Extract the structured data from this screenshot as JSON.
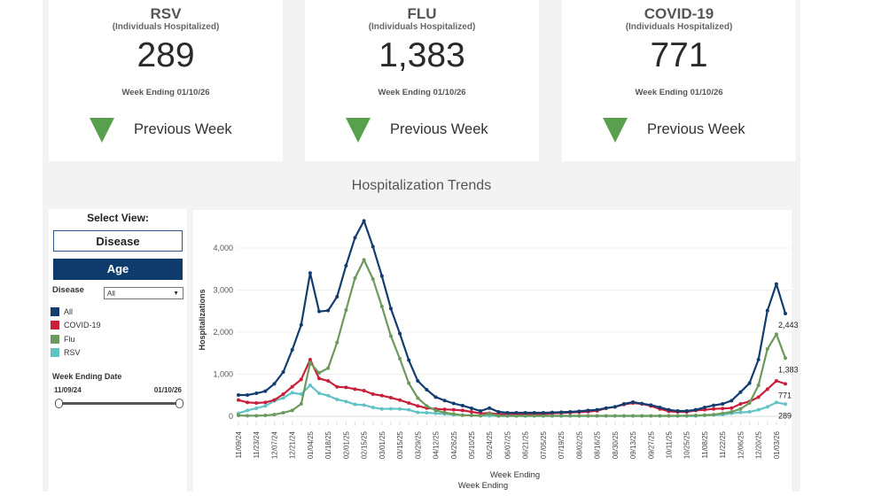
{
  "cards": [
    {
      "title": "RSV",
      "subtitle": "(Individuals Hospitalized)",
      "value": "289",
      "week": "Week Ending 01/10/26",
      "trend": "Previous Week",
      "trend_direction": "down"
    },
    {
      "title": "FLU",
      "subtitle": "(Individuals Hospitalized)",
      "value": "1,383",
      "week": "Week Ending 01/10/26",
      "trend": "Previous Week",
      "trend_direction": "down"
    },
    {
      "title": "COVID-19",
      "subtitle": "(Individuals Hospitalized)",
      "value": "771",
      "week": "Week Ending 01/10/26",
      "trend": "Previous Week",
      "trend_direction": "down"
    }
  ],
  "section_title": "Hospitalization Trends",
  "controls": {
    "select_view": "Select View:",
    "btn_disease": "Disease",
    "btn_age": "Age",
    "disease_label": "Disease",
    "disease_value": "All",
    "legend": [
      {
        "name": "All",
        "color": "#123d70"
      },
      {
        "name": "COVID-19",
        "color": "#c8203a"
      },
      {
        "name": "Flu",
        "color": "#6c9a5c"
      },
      {
        "name": "RSV",
        "color": "#62c3c7"
      }
    ],
    "date_label": "Week Ending Date",
    "date_start": "11/09/24",
    "date_end": "01/10/26"
  },
  "chart_data": {
    "type": "line",
    "xlabel": "Week Ending",
    "xlabel_repeat": "Week Ending",
    "ylabel": "Hospitalizations",
    "ylim": [
      0,
      4800
    ],
    "yticks": [
      0,
      1000,
      2000,
      3000,
      4000
    ],
    "ytick_labels": [
      "0",
      "1,000",
      "2,000",
      "3,000",
      "4,000"
    ],
    "grid": true,
    "x": [
      "11/09/24",
      "11/16/24",
      "11/23/24",
      "11/30/24",
      "12/07/24",
      "12/14/24",
      "12/21/24",
      "12/28/24",
      "01/04/25",
      "01/11/25",
      "01/18/25",
      "01/25/25",
      "02/01/25",
      "02/08/25",
      "02/15/25",
      "02/22/25",
      "03/01/25",
      "03/08/25",
      "03/15/25",
      "03/22/25",
      "03/29/25",
      "04/05/25",
      "04/12/25",
      "04/19/25",
      "04/26/25",
      "05/03/25",
      "05/10/25",
      "05/17/25",
      "05/24/25",
      "05/31/25",
      "06/07/25",
      "06/14/25",
      "06/21/25",
      "06/28/25",
      "07/05/25",
      "07/12/25",
      "07/19/25",
      "07/26/25",
      "08/02/25",
      "08/09/25",
      "08/16/25",
      "08/23/25",
      "08/30/25",
      "09/06/25",
      "09/13/25",
      "09/20/25",
      "09/27/25",
      "10/04/25",
      "10/11/25",
      "10/18/25",
      "10/25/25",
      "11/01/25",
      "11/08/25",
      "11/15/25",
      "11/22/25",
      "11/29/25",
      "12/06/25",
      "12/13/25",
      "12/20/25",
      "12/27/25",
      "01/03/26",
      "01/10/26"
    ],
    "series": [
      {
        "name": "All",
        "color": "#123d70",
        "end_label": "2,443",
        "values": [
          505,
          505,
          547,
          597,
          772,
          1053,
          1579,
          2175,
          3404,
          2491,
          2512,
          2842,
          3579,
          4246,
          4646,
          4035,
          3333,
          2561,
          1965,
          1333,
          842,
          632,
          456,
          375,
          305,
          255,
          190,
          126,
          196,
          105,
          84,
          84,
          84,
          84,
          84,
          91,
          98,
          105,
          119,
          140,
          154,
          196,
          225,
          295,
          337,
          302,
          267,
          211,
          154,
          126,
          126,
          154,
          211,
          260,
          295,
          372,
          575,
          786,
          1347,
          2512,
          3144,
          2443
        ]
      },
      {
        "name": "Flu",
        "color": "#6c9a5c",
        "end_label": "1,383",
        "values": [
          20,
          14,
          14,
          20,
          40,
          84,
          140,
          295,
          1270,
          1032,
          1144,
          1754,
          2526,
          3284,
          3719,
          3263,
          2611,
          1909,
          1368,
          786,
          435,
          246,
          140,
          88,
          55,
          25,
          21,
          14,
          60,
          10,
          10,
          10,
          10,
          10,
          10,
          10,
          10,
          10,
          10,
          10,
          10,
          10,
          10,
          10,
          10,
          10,
          10,
          10,
          10,
          10,
          14,
          20,
          28,
          40,
          70,
          105,
          175,
          316,
          737,
          1600,
          1951,
          1383
        ]
      },
      {
        "name": "COVID-19",
        "color": "#c8203a",
        "end_label": "771",
        "values": [
          386,
          330,
          316,
          330,
          386,
          526,
          702,
          877,
          1347,
          898,
          842,
          700,
          688,
          646,
          610,
          526,
          491,
          442,
          386,
          316,
          246,
          196,
          175,
          165,
          154,
          140,
          105,
          70,
          75,
          49,
          49,
          49,
          49,
          49,
          49,
          70,
          80,
          90,
          100,
          110,
          130,
          190,
          225,
          281,
          316,
          295,
          246,
          175,
          119,
          105,
          105,
          140,
          154,
          175,
          185,
          196,
          295,
          351,
          456,
          646,
          842,
          771
        ]
      },
      {
        "name": "RSV",
        "color": "#62c3c7",
        "end_label": "289",
        "values": [
          70,
          140,
          190,
          246,
          365,
          435,
          561,
          526,
          737,
          547,
          491,
          400,
          351,
          281,
          267,
          210,
          175,
          180,
          175,
          154,
          91,
          84,
          70,
          56,
          35,
          28,
          20,
          15,
          12,
          8,
          8,
          8,
          8,
          8,
          8,
          8,
          8,
          8,
          8,
          8,
          8,
          8,
          8,
          8,
          8,
          8,
          8,
          8,
          8,
          8,
          8,
          8,
          20,
          28,
          40,
          70,
          91,
          105,
          154,
          225,
          330,
          289
        ]
      }
    ]
  }
}
